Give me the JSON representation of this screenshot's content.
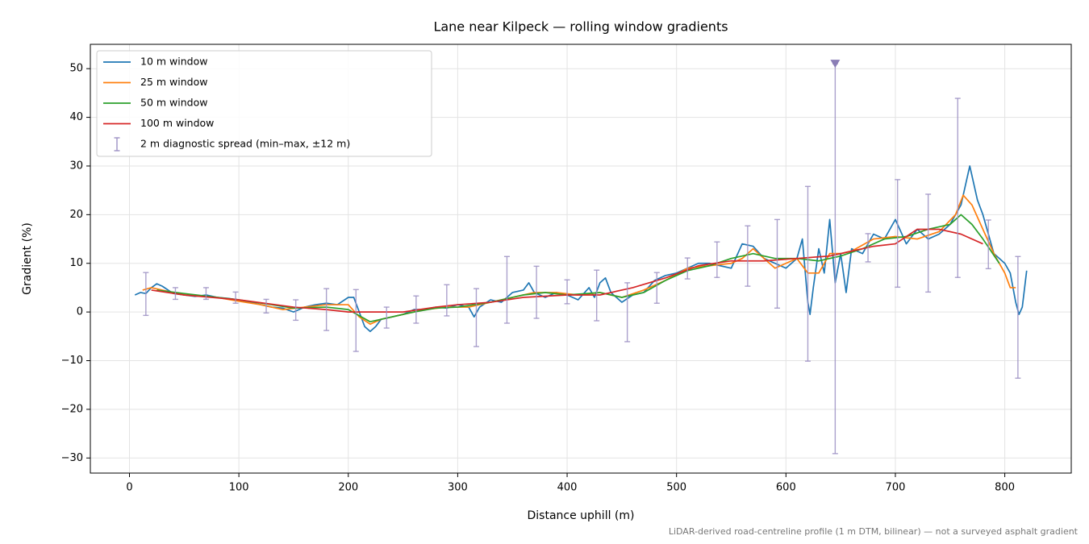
{
  "chart_data": {
    "type": "line",
    "title": "Lane near Kilpeck — rolling window gradients",
    "xlabel": "Distance uphill (m)",
    "ylabel": "Gradient (%)",
    "footnote": "LiDAR-derived road-centreline profile (1 m DTM, bilinear) — not a surveyed asphalt gradient",
    "xlim": [
      -35.75,
      860.75
    ],
    "ylim": [
      -33.1,
      55
    ],
    "xticks": [
      0,
      100,
      200,
      300,
      400,
      500,
      600,
      700,
      800
    ],
    "yticks": [
      {
        "value": -30,
        "label": "−30"
      },
      {
        "value": -20,
        "label": "−20"
      },
      {
        "value": -10,
        "label": "−10"
      },
      0,
      10,
      20,
      30,
      40,
      50
    ],
    "grid": true,
    "legend": "upper left",
    "series": [
      {
        "name": "10 m window",
        "color": "#1f77b4",
        "x": [
          5,
          10,
          15,
          20,
          25,
          30,
          40,
          50,
          60,
          70,
          80,
          90,
          100,
          110,
          120,
          130,
          140,
          150,
          160,
          170,
          180,
          190,
          200,
          205,
          210,
          215,
          220,
          225,
          230,
          240,
          250,
          260,
          270,
          280,
          290,
          300,
          310,
          315,
          320,
          330,
          340,
          350,
          360,
          365,
          370,
          380,
          390,
          400,
          410,
          420,
          425,
          430,
          435,
          440,
          450,
          460,
          470,
          480,
          490,
          500,
          510,
          520,
          530,
          540,
          550,
          560,
          570,
          580,
          590,
          600,
          610,
          615,
          620,
          622,
          625,
          630,
          635,
          640,
          645,
          650,
          655,
          660,
          670,
          680,
          690,
          700,
          710,
          720,
          730,
          740,
          750,
          760,
          768,
          775,
          780,
          790,
          800,
          805,
          810,
          813,
          816,
          820
        ],
        "values": [
          3.5,
          4,
          3.8,
          5,
          5.8,
          5.3,
          3.8,
          3.5,
          3.2,
          3.5,
          3,
          2.8,
          2.5,
          2,
          1.5,
          1,
          0.8,
          0,
          1,
          1.5,
          1.8,
          1.5,
          3,
          3,
          0,
          -3,
          -4,
          -3,
          -1.5,
          -1,
          -0.5,
          0.5,
          0.5,
          1,
          0.8,
          1.5,
          1,
          -1,
          1,
          2.5,
          2,
          4,
          4.5,
          6,
          4,
          3,
          4,
          3.5,
          2.5,
          5,
          3,
          6,
          7,
          4,
          2,
          3.5,
          4,
          6.5,
          7.5,
          8,
          9,
          10,
          10,
          9.5,
          9,
          14,
          13.5,
          11,
          10,
          9,
          11,
          15,
          2,
          -0.5,
          5,
          13,
          8,
          19,
          6,
          12,
          4,
          13,
          12,
          16,
          15,
          19,
          14,
          17,
          15,
          16,
          18,
          22,
          30,
          23,
          20,
          12,
          10,
          8,
          2,
          -0.5,
          1,
          8.5
        ]
      },
      {
        "name": "25 m window",
        "color": "#ff7f0e",
        "x": [
          12,
          20,
          30,
          50,
          80,
          100,
          120,
          140,
          160,
          180,
          200,
          210,
          220,
          230,
          250,
          270,
          290,
          310,
          330,
          350,
          370,
          390,
          410,
          430,
          450,
          470,
          490,
          510,
          530,
          550,
          560,
          570,
          580,
          590,
          600,
          610,
          620,
          630,
          640,
          650,
          660,
          680,
          700,
          720,
          740,
          755,
          762,
          770,
          780,
          790,
          800,
          805,
          810
        ],
        "values": [
          4.5,
          5,
          4.5,
          3.5,
          3,
          2.2,
          1.5,
          0.5,
          1,
          1.5,
          1.5,
          -1,
          -2.5,
          -1.5,
          -0.5,
          0.5,
          1,
          1,
          2,
          3,
          4,
          4,
          3.5,
          4,
          3,
          4.5,
          6.5,
          9,
          9.5,
          10,
          11,
          13,
          11,
          9,
          10,
          11,
          8,
          8,
          12,
          12,
          12.5,
          15,
          15.5,
          15,
          16.5,
          20,
          24,
          22,
          17,
          12,
          8,
          5,
          5
        ]
      },
      {
        "name": "50 m window",
        "color": "#2ca02c",
        "x": [
          25,
          50,
          80,
          100,
          130,
          150,
          180,
          200,
          220,
          240,
          260,
          280,
          300,
          330,
          360,
          380,
          400,
          430,
          450,
          470,
          490,
          510,
          530,
          550,
          570,
          590,
          610,
          630,
          650,
          670,
          690,
          710,
          730,
          750,
          760,
          770,
          780,
          795
        ],
        "values": [
          4.5,
          3.8,
          3,
          2.5,
          1.5,
          0.8,
          1,
          0.5,
          -2,
          -1,
          0,
          0.8,
          1,
          2,
          3.5,
          4,
          3.5,
          4,
          3,
          4,
          6.5,
          8.5,
          9.5,
          11,
          12,
          11,
          11,
          10.5,
          11.5,
          13,
          15,
          15.5,
          17,
          18,
          20,
          18,
          15,
          10
        ]
      },
      {
        "name": "100 m window",
        "color": "#d62728",
        "x": [
          20,
          50,
          100,
          150,
          180,
          200,
          220,
          250,
          280,
          300,
          330,
          360,
          400,
          430,
          460,
          490,
          520,
          550,
          580,
          610,
          640,
          660,
          680,
          700,
          720,
          740,
          760,
          780
        ],
        "values": [
          4.5,
          3.5,
          2.5,
          1,
          0.5,
          0,
          0,
          0,
          1,
          1.5,
          2,
          3,
          3.5,
          3.5,
          5,
          7,
          9.5,
          10.5,
          10.5,
          11,
          11.5,
          12.5,
          13.5,
          14,
          17,
          17,
          16,
          14
        ]
      },
      {
        "name": "2 m diagnostic spread (min–max, ±12 m)",
        "type": "errorbar",
        "color": "#9d91c4",
        "x": [
          15,
          42,
          70,
          97,
          125,
          152,
          180,
          207,
          235,
          262,
          290,
          317,
          345,
          372,
          400,
          427,
          455,
          482,
          510,
          537,
          565,
          592,
          620,
          645,
          675,
          702,
          730,
          757,
          785,
          812
        ],
        "min": [
          -0.7,
          2.6,
          2.6,
          1.8,
          -0.2,
          -1.7,
          -3.8,
          -8.1,
          -3.3,
          -2.3,
          -0.8,
          -7.1,
          -2.3,
          -1.3,
          1.7,
          -1.8,
          -6.1,
          1.8,
          6.8,
          7.1,
          5.3,
          0.8,
          -10.1,
          -29.1,
          10.3,
          5.1,
          4.1,
          7.1,
          8.9,
          -13.6
        ],
        "max": [
          8.1,
          5,
          5,
          4.1,
          2.6,
          2.5,
          4.8,
          4.6,
          1,
          3.3,
          5.6,
          4.8,
          11.4,
          9.4,
          6.6,
          8.6,
          6,
          8.1,
          11.1,
          14.4,
          17.7,
          19,
          25.8,
          51,
          16.1,
          27.2,
          24.2,
          43.9,
          18.9,
          11.4
        ],
        "marker": {
          "x": 645,
          "y": 51
        }
      }
    ]
  }
}
